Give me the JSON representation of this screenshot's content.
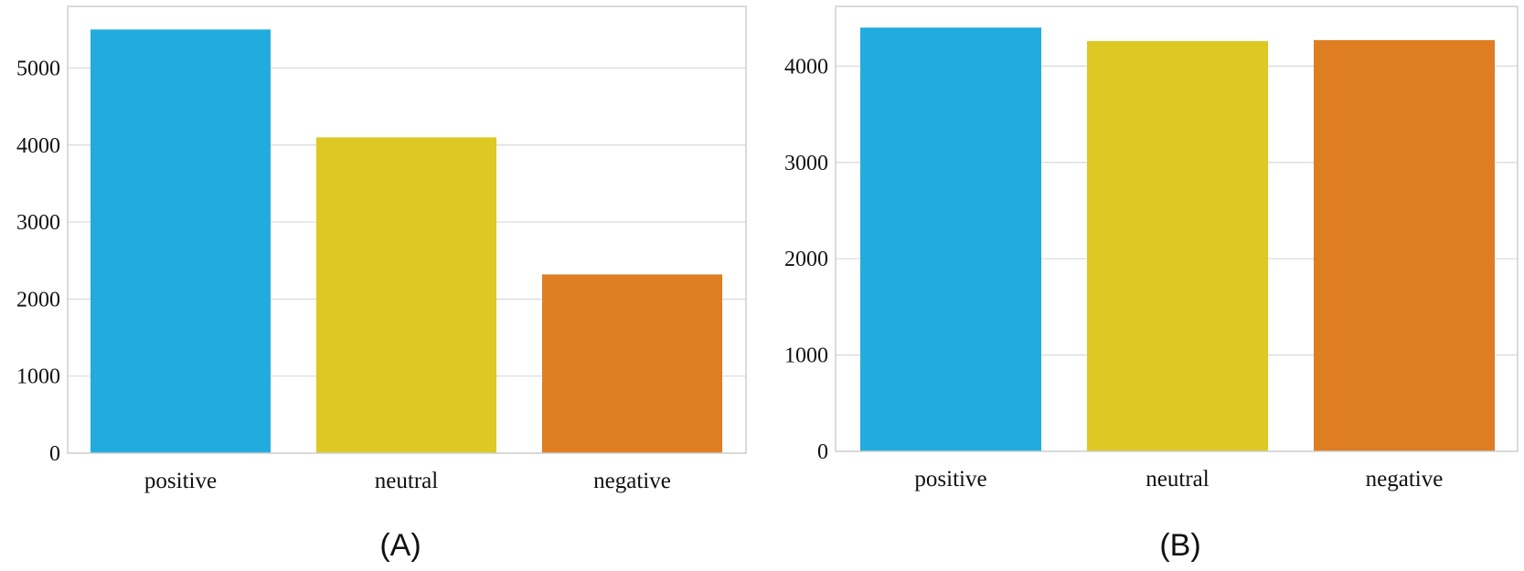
{
  "chart_data": [
    {
      "type": "bar",
      "caption": "(A)",
      "categories": [
        "positive",
        "neutral",
        "negative"
      ],
      "values": [
        5500,
        4100,
        2320
      ],
      "colors": [
        "#22ACDE",
        "#DEC824",
        "#DE7D22"
      ],
      "ylim": [
        0,
        5800
      ],
      "yticks": [
        0,
        1000,
        2000,
        3000,
        4000,
        5000
      ],
      "grid": "horizontal",
      "legend": "none"
    },
    {
      "type": "bar",
      "caption": "(B)",
      "categories": [
        "positive",
        "neutral",
        "negative"
      ],
      "values": [
        4400,
        4260,
        4270
      ],
      "colors": [
        "#22ACDE",
        "#DEC824",
        "#DE7D22"
      ],
      "ylim": [
        0,
        4620
      ],
      "yticks": [
        0,
        1000,
        2000,
        3000,
        4000
      ],
      "grid": "horizontal",
      "legend": "none"
    }
  ]
}
